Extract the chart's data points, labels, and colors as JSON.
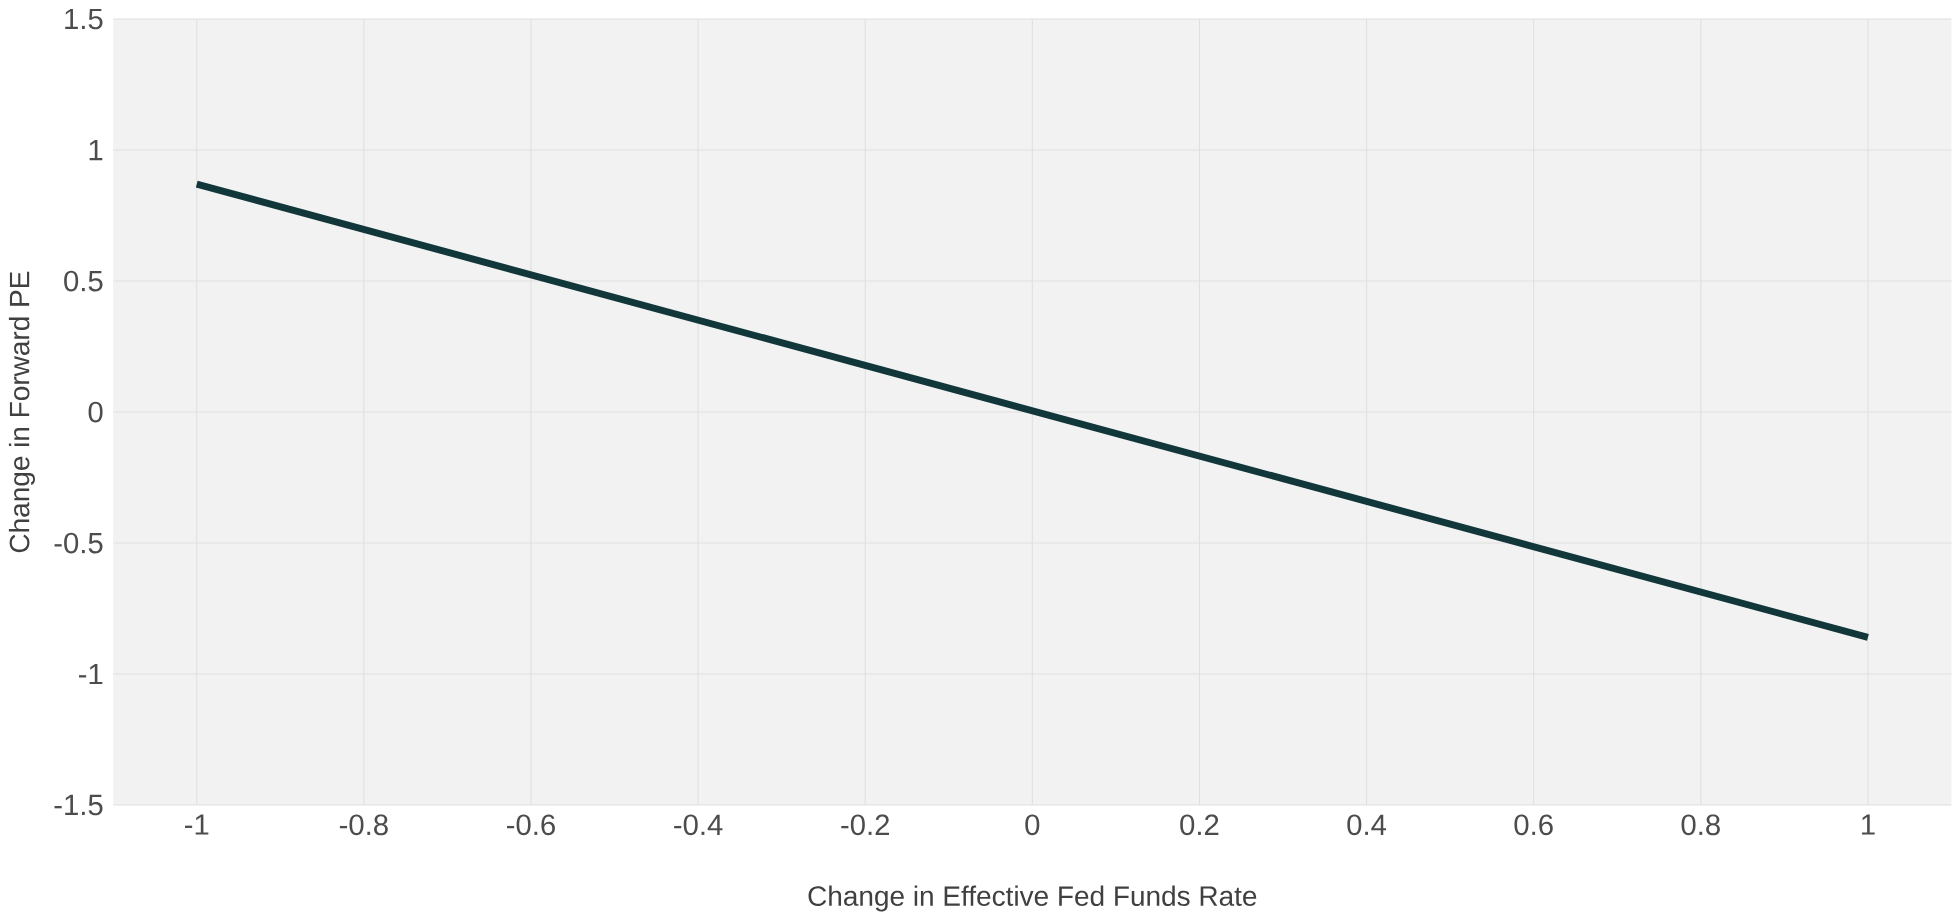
{
  "chart_data": {
    "type": "line",
    "xlabel": "Change in Effective Fed Funds Rate",
    "ylabel": "Change in Forward PE",
    "x": [
      -1,
      1
    ],
    "series": [
      {
        "color": "#11373b",
        "values": [
          0.87,
          -0.86
        ]
      }
    ],
    "xlim": [
      -1.1,
      1.1
    ],
    "xticks": [
      -1,
      -0.8,
      -0.6,
      -0.4,
      -0.2,
      0,
      0.2,
      0.4,
      0.6,
      0.8,
      1
    ],
    "ylim": [
      -1.5,
      1.5
    ],
    "yticks": [
      -1.5,
      -1,
      -0.5,
      0,
      0.5,
      1,
      1.5
    ],
    "grid": true,
    "marker": "none",
    "line_style": "solid"
  }
}
